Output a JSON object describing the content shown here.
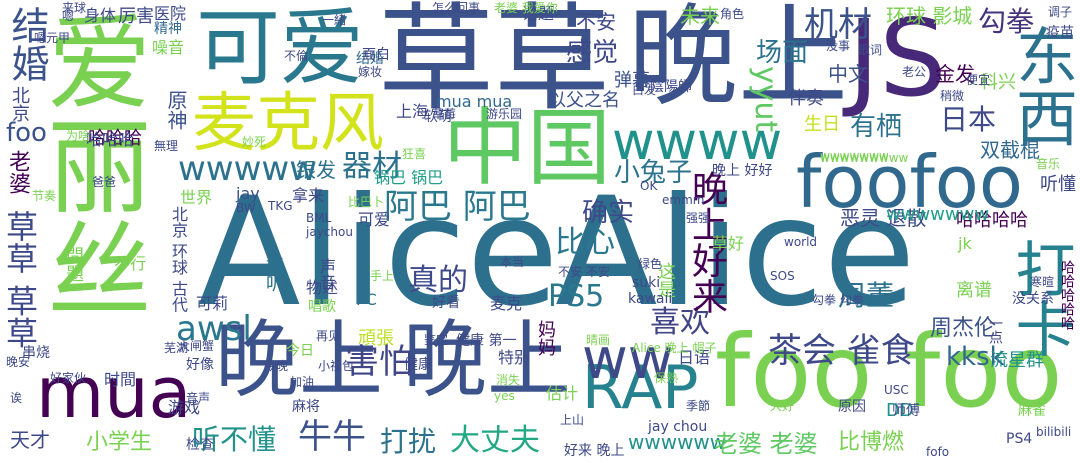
{
  "palette": {
    "background": "#ffffff"
  },
  "words": [
    {
      "t": "Alice",
      "c": "#2d708e"
    },
    {
      "t": "Alice",
      "c": "#2d708e"
    },
    {
      "t": "晚上",
      "c": "#3b528b"
    },
    {
      "t": "晚上",
      "c": "#3b528b"
    },
    {
      "t": "晚上",
      "c": "#3b528b"
    },
    {
      "t": "爱丽丝",
      "c": "#7ad151"
    },
    {
      "t": "草草",
      "c": "#3b528b"
    },
    {
      "t": "可爱",
      "c": "#2a788e"
    },
    {
      "t": "JS",
      "c": "#482878"
    },
    {
      "t": "foo",
      "c": "#7ad151"
    },
    {
      "t": "foo",
      "c": "#7ad151"
    },
    {
      "t": "foofoo",
      "c": "#31688e"
    },
    {
      "t": "中国",
      "c": "#5ec962"
    },
    {
      "t": "麦克风",
      "c": "#d2e21b"
    },
    {
      "t": "wwww",
      "c": "#21918c"
    },
    {
      "t": "东西",
      "c": "#2c728e"
    },
    {
      "t": "打卡",
      "c": "#26828e"
    },
    {
      "t": "RAP",
      "c": "#26828e"
    },
    {
      "t": "mua",
      "c": "#440154"
    },
    {
      "t": "ww",
      "c": "#3e4989"
    },
    {
      "t": "结婚",
      "c": "#3b528b"
    },
    {
      "t": "草草 草草",
      "c": "#3e4989"
    },
    {
      "t": "wwwww",
      "c": "#2c728e"
    },
    {
      "t": "阿巴 阿巴",
      "c": "#2a788e"
    },
    {
      "t": "茶会 雀食",
      "c": "#3e4989"
    },
    {
      "t": "害怕",
      "c": "#404688"
    },
    {
      "t": "牛牛",
      "c": "#3b528b"
    },
    {
      "t": "打扰",
      "c": "#2c728e"
    },
    {
      "t": "大丈夫",
      "c": "#22a884"
    },
    {
      "t": "喜欢",
      "c": "#414487"
    },
    {
      "t": "PS5",
      "c": "#2a788e"
    },
    {
      "t": "真的",
      "c": "#3e4a89"
    },
    {
      "t": "awsl",
      "c": "#2a788e"
    },
    {
      "t": "听不懂",
      "c": "#21918c"
    },
    {
      "t": "机材",
      "c": "#3b528b"
    },
    {
      "t": "勾拳",
      "c": "#46337e"
    },
    {
      "t": "有栖",
      "c": "#2c728e"
    },
    {
      "t": "日本",
      "c": "#3e4989"
    },
    {
      "t": "比心",
      "c": "#2a788e"
    },
    {
      "t": "周董",
      "c": "#2c728e"
    },
    {
      "t": "确实",
      "c": "#3e4989"
    },
    {
      "t": "小兔子",
      "c": "#2c728e"
    },
    {
      "t": "器材",
      "c": "#2c728e"
    },
    {
      "t": "感觉",
      "c": "#3e4989"
    },
    {
      "t": "场面",
      "c": "#2c728e"
    },
    {
      "t": "yyut",
      "c": "#5ec962"
    },
    {
      "t": "晚上好来",
      "c": "#440154"
    },
    {
      "t": "kksk",
      "c": "#31688e"
    },
    {
      "t": "wwwwww",
      "c": "#21918c"
    },
    {
      "t": "老婆 老婆",
      "c": "#5ec962"
    },
    {
      "t": "小学生",
      "c": "#7ad151"
    },
    {
      "t": "比博燃",
      "c": "#7ad151"
    },
    {
      "t": "周杰伦",
      "c": "#3b528b"
    },
    {
      "t": "哈哈哈哈",
      "c": "#440154"
    },
    {
      "t": "流星群",
      "c": "#21918c"
    },
    {
      "t": "不安",
      "c": "#3e4989"
    },
    {
      "t": "未来",
      "c": "#7ad151"
    },
    {
      "t": "环球 影城",
      "c": "#7ad151"
    },
    {
      "t": "金发",
      "c": "#440154"
    },
    {
      "t": "科兴",
      "c": "#7ad151"
    },
    {
      "t": "双截棍",
      "c": "#31688e"
    },
    {
      "t": "恶灵 退散",
      "c": "#3e4989"
    },
    {
      "t": "听懂",
      "c": "#3e4989"
    },
    {
      "t": "wwwwwww",
      "c": "#1f9e89"
    },
    {
      "t": "哈哈哈",
      "c": "#440154"
    },
    {
      "t": "foo",
      "c": "#3b528b"
    },
    {
      "t": "老婆",
      "c": "#440154"
    },
    {
      "t": "北京",
      "c": "#3e4989"
    },
    {
      "t": "上海",
      "c": "#3e4989"
    },
    {
      "t": "中文",
      "c": "#3b528b"
    },
    {
      "t": "伴奏",
      "c": "#3e4989"
    },
    {
      "t": "生日",
      "c": "#c8e020"
    },
    {
      "t": "以父之名",
      "c": "#3b528b"
    },
    {
      "t": "弹幕",
      "c": "#3b528b"
    },
    {
      "t": "原神",
      "c": "#3b528b"
    },
    {
      "t": "银发",
      "c": "#2c728e"
    },
    {
      "t": "锅巴 锅巴",
      "c": "#1f9e89"
    },
    {
      "t": "mua mua",
      "c": "#31688e"
    },
    {
      "t": "噪音",
      "c": "#7ad151"
    },
    {
      "t": "精神",
      "c": "#31688e"
    },
    {
      "t": "身体",
      "c": "#3e4989"
    },
    {
      "t": "厉害",
      "c": "#3e4989"
    },
    {
      "t": "医院",
      "c": "#3e4989"
    },
    {
      "t": "话题",
      "c": "#3e4989"
    },
    {
      "t": "世界",
      "c": "#7ad151"
    },
    {
      "t": "可爱",
      "c": "#3e4989"
    },
    {
      "t": "拿来",
      "c": "#3e4989"
    },
    {
      "t": "jay",
      "c": "#3b528b"
    },
    {
      "t": "可莉",
      "c": "#3e4989"
    },
    {
      "t": "好听",
      "c": "#2c728e"
    },
    {
      "t": "北京 环球 古代",
      "c": "#3e4989"
    },
    {
      "t": "問題",
      "c": "#7ad151"
    },
    {
      "t": "不行",
      "c": "#7ad151"
    },
    {
      "t": "声音",
      "c": "#3e4989"
    },
    {
      "t": "物述",
      "c": "#3e4989"
    },
    {
      "t": "唱歌",
      "c": "#7ad151"
    },
    {
      "t": "PC",
      "c": "#2c728e"
    },
    {
      "t": "頑張",
      "c": "#bddf26"
    },
    {
      "t": "特别",
      "c": "#3e4989"
    },
    {
      "t": "日语",
      "c": "#3e4989"
    },
    {
      "t": "麦克",
      "c": "#3e4989"
    },
    {
      "t": "好看",
      "c": "#3e4989"
    },
    {
      "t": "这是",
      "c": "#7ad151"
    },
    {
      "t": "妈妈",
      "c": "#440154"
    },
    {
      "t": "草好",
      "c": "#7ad151"
    },
    {
      "t": "离谱",
      "c": "#7ad151"
    },
    {
      "t": "kawaii",
      "c": "#3e4989"
    },
    {
      "t": "suki",
      "c": "#3e4989"
    },
    {
      "t": "jk",
      "c": "#7ad151"
    },
    {
      "t": "时間",
      "c": "#3e4989"
    },
    {
      "t": "好像",
      "c": "#3e4989"
    },
    {
      "t": "游戏",
      "c": "#3e4989"
    },
    {
      "t": "麻将",
      "c": "#3e4989"
    },
    {
      "t": "健康",
      "c": "#3e4989"
    },
    {
      "t": "估计",
      "c": "#7ad151"
    },
    {
      "t": "天才",
      "c": "#3e4989"
    },
    {
      "t": "检查",
      "c": "#3e4989"
    },
    {
      "t": "wwwwwww",
      "c": "#7ad151"
    },
    {
      "t": "DD",
      "c": "#21918c"
    },
    {
      "t": "jay chou",
      "c": "#3e4989"
    },
    {
      "t": "PS4",
      "c": "#3e4989"
    },
    {
      "t": "bilibili",
      "c": "#3e4989"
    },
    {
      "t": "师傅",
      "c": "#3e4989"
    },
    {
      "t": "麻雀",
      "c": "#7ad151"
    },
    {
      "t": "一点",
      "c": "#3e4989"
    },
    {
      "t": "哈哈哈哈哈",
      "c": "#440154"
    },
    {
      "t": "没关系",
      "c": "#3e4989"
    },
    {
      "t": "结婚",
      "c": "#31688e"
    },
    {
      "t": "嫁妆",
      "c": "#3e4989"
    },
    {
      "t": "面白",
      "c": "#3e4989"
    },
    {
      "t": "不倫",
      "c": "#3e4989"
    },
    {
      "t": "一緒",
      "c": "#3e4989"
    },
    {
      "t": "怎么回事",
      "c": "#3e4989"
    },
    {
      "t": "老婆 我爱你",
      "c": "#7ad151"
    },
    {
      "t": "角色",
      "c": "#3e4989"
    },
    {
      "t": "调子",
      "c": "#3e4989"
    },
    {
      "t": "疫苗",
      "c": "#3e4989"
    },
    {
      "t": "没事",
      "c": "#3e4989"
    },
    {
      "t": "歌词",
      "c": "#3e4989"
    },
    {
      "t": "老公",
      "c": "#3e4989"
    },
    {
      "t": "便宜",
      "c": "#3e4989"
    },
    {
      "t": "陰陽師",
      "c": "#3e4989"
    },
    {
      "t": "白发",
      "c": "#3e4989"
    },
    {
      "t": "稍微",
      "c": "#3e4989"
    },
    {
      "t": "音乐",
      "c": "#7ad151"
    },
    {
      "t": "晚上 好好",
      "c": "#3e4989"
    },
    {
      "t": "软萌",
      "c": "#3e4989"
    },
    {
      "t": "狂喜",
      "c": "#7ad151"
    },
    {
      "t": "游乐园",
      "c": "#3e4989"
    },
    {
      "t": "草莓",
      "c": "#3e4989"
    },
    {
      "t": "哈哈哈",
      "c": "#3e4989"
    },
    {
      "t": "为啥",
      "c": "#7ad151"
    },
    {
      "t": "無理",
      "c": "#3e4989"
    },
    {
      "t": "妙死",
      "c": "#7ad151"
    },
    {
      "t": "爸爸",
      "c": "#3e4989"
    },
    {
      "t": "节奏",
      "c": "#7ad151"
    },
    {
      "t": "BML",
      "c": "#3e4989"
    },
    {
      "t": "BW",
      "c": "#3e4989"
    },
    {
      "t": "TKG",
      "c": "#3e4989"
    },
    {
      "t": "jaychou",
      "c": "#3e4989"
    },
    {
      "t": "比巴卜",
      "c": "#7ad151"
    },
    {
      "t": "emmm",
      "c": "#3e4989"
    },
    {
      "t": "OK",
      "c": "#3e4989"
    },
    {
      "t": "强强",
      "c": "#3e4989"
    },
    {
      "t": "wwwwwwwww",
      "c": "#7ad151"
    },
    {
      "t": "world",
      "c": "#3e4989"
    },
    {
      "t": "SOS",
      "c": "#3e4989"
    },
    {
      "t": "勾拳 勾拳",
      "c": "#3e4989"
    },
    {
      "t": "寒暄",
      "c": "#3e4989"
    },
    {
      "t": "今日",
      "c": "#7ad151"
    },
    {
      "t": "再见",
      "c": "#3e4989"
    },
    {
      "t": "鉴定",
      "c": "#3e4989"
    },
    {
      "t": "健康 第一",
      "c": "#3e4989"
    },
    {
      "t": "Alice 晚上 帽子",
      "c": "#7ad151"
    },
    {
      "t": "晴画",
      "c": "#7ad151"
    },
    {
      "t": "小视包",
      "c": "#3e4989"
    },
    {
      "t": "加油",
      "c": "#3e4989"
    },
    {
      "t": "yes",
      "c": "#7ad151"
    },
    {
      "t": "上山",
      "c": "#3e4989"
    },
    {
      "t": "季節",
      "c": "#3e4989"
    },
    {
      "t": "大好",
      "c": "#7ad151"
    },
    {
      "t": "原因",
      "c": "#3e4989"
    },
    {
      "t": "USC",
      "c": "#3e4989"
    },
    {
      "t": "fofo",
      "c": "#3e4989"
    },
    {
      "t": "好来 晚上",
      "c": "#3e4989"
    },
    {
      "t": "晚安",
      "c": "#3e4989"
    },
    {
      "t": "串烧",
      "c": "#3e4989"
    },
    {
      "t": "好家伙",
      "c": "#3e4989"
    },
    {
      "t": "芜湖",
      "c": "#3e4989"
    },
    {
      "t": "大闸蟹",
      "c": "#3e4989"
    },
    {
      "t": "今晚",
      "c": "#3e4989"
    },
    {
      "t": "音声",
      "c": "#3e4989"
    },
    {
      "t": "本当",
      "c": "#3e4989"
    },
    {
      "t": "不安 不安",
      "c": "#3e4989"
    },
    {
      "t": "绿色",
      "c": "#3e4989"
    },
    {
      "t": "手上",
      "c": "#7ad151"
    },
    {
      "t": "消失",
      "c": "#7ad151"
    },
    {
      "t": "保熟",
      "c": "#7ad151"
    },
    {
      "t": "嗯元甲",
      "c": "#3e4989"
    },
    {
      "t": "来球",
      "c": "#3e4989"
    },
    {
      "t": "诶",
      "c": "#3e4989"
    },
    {
      "t": "嗯",
      "c": "#3e4989"
    }
  ]
}
